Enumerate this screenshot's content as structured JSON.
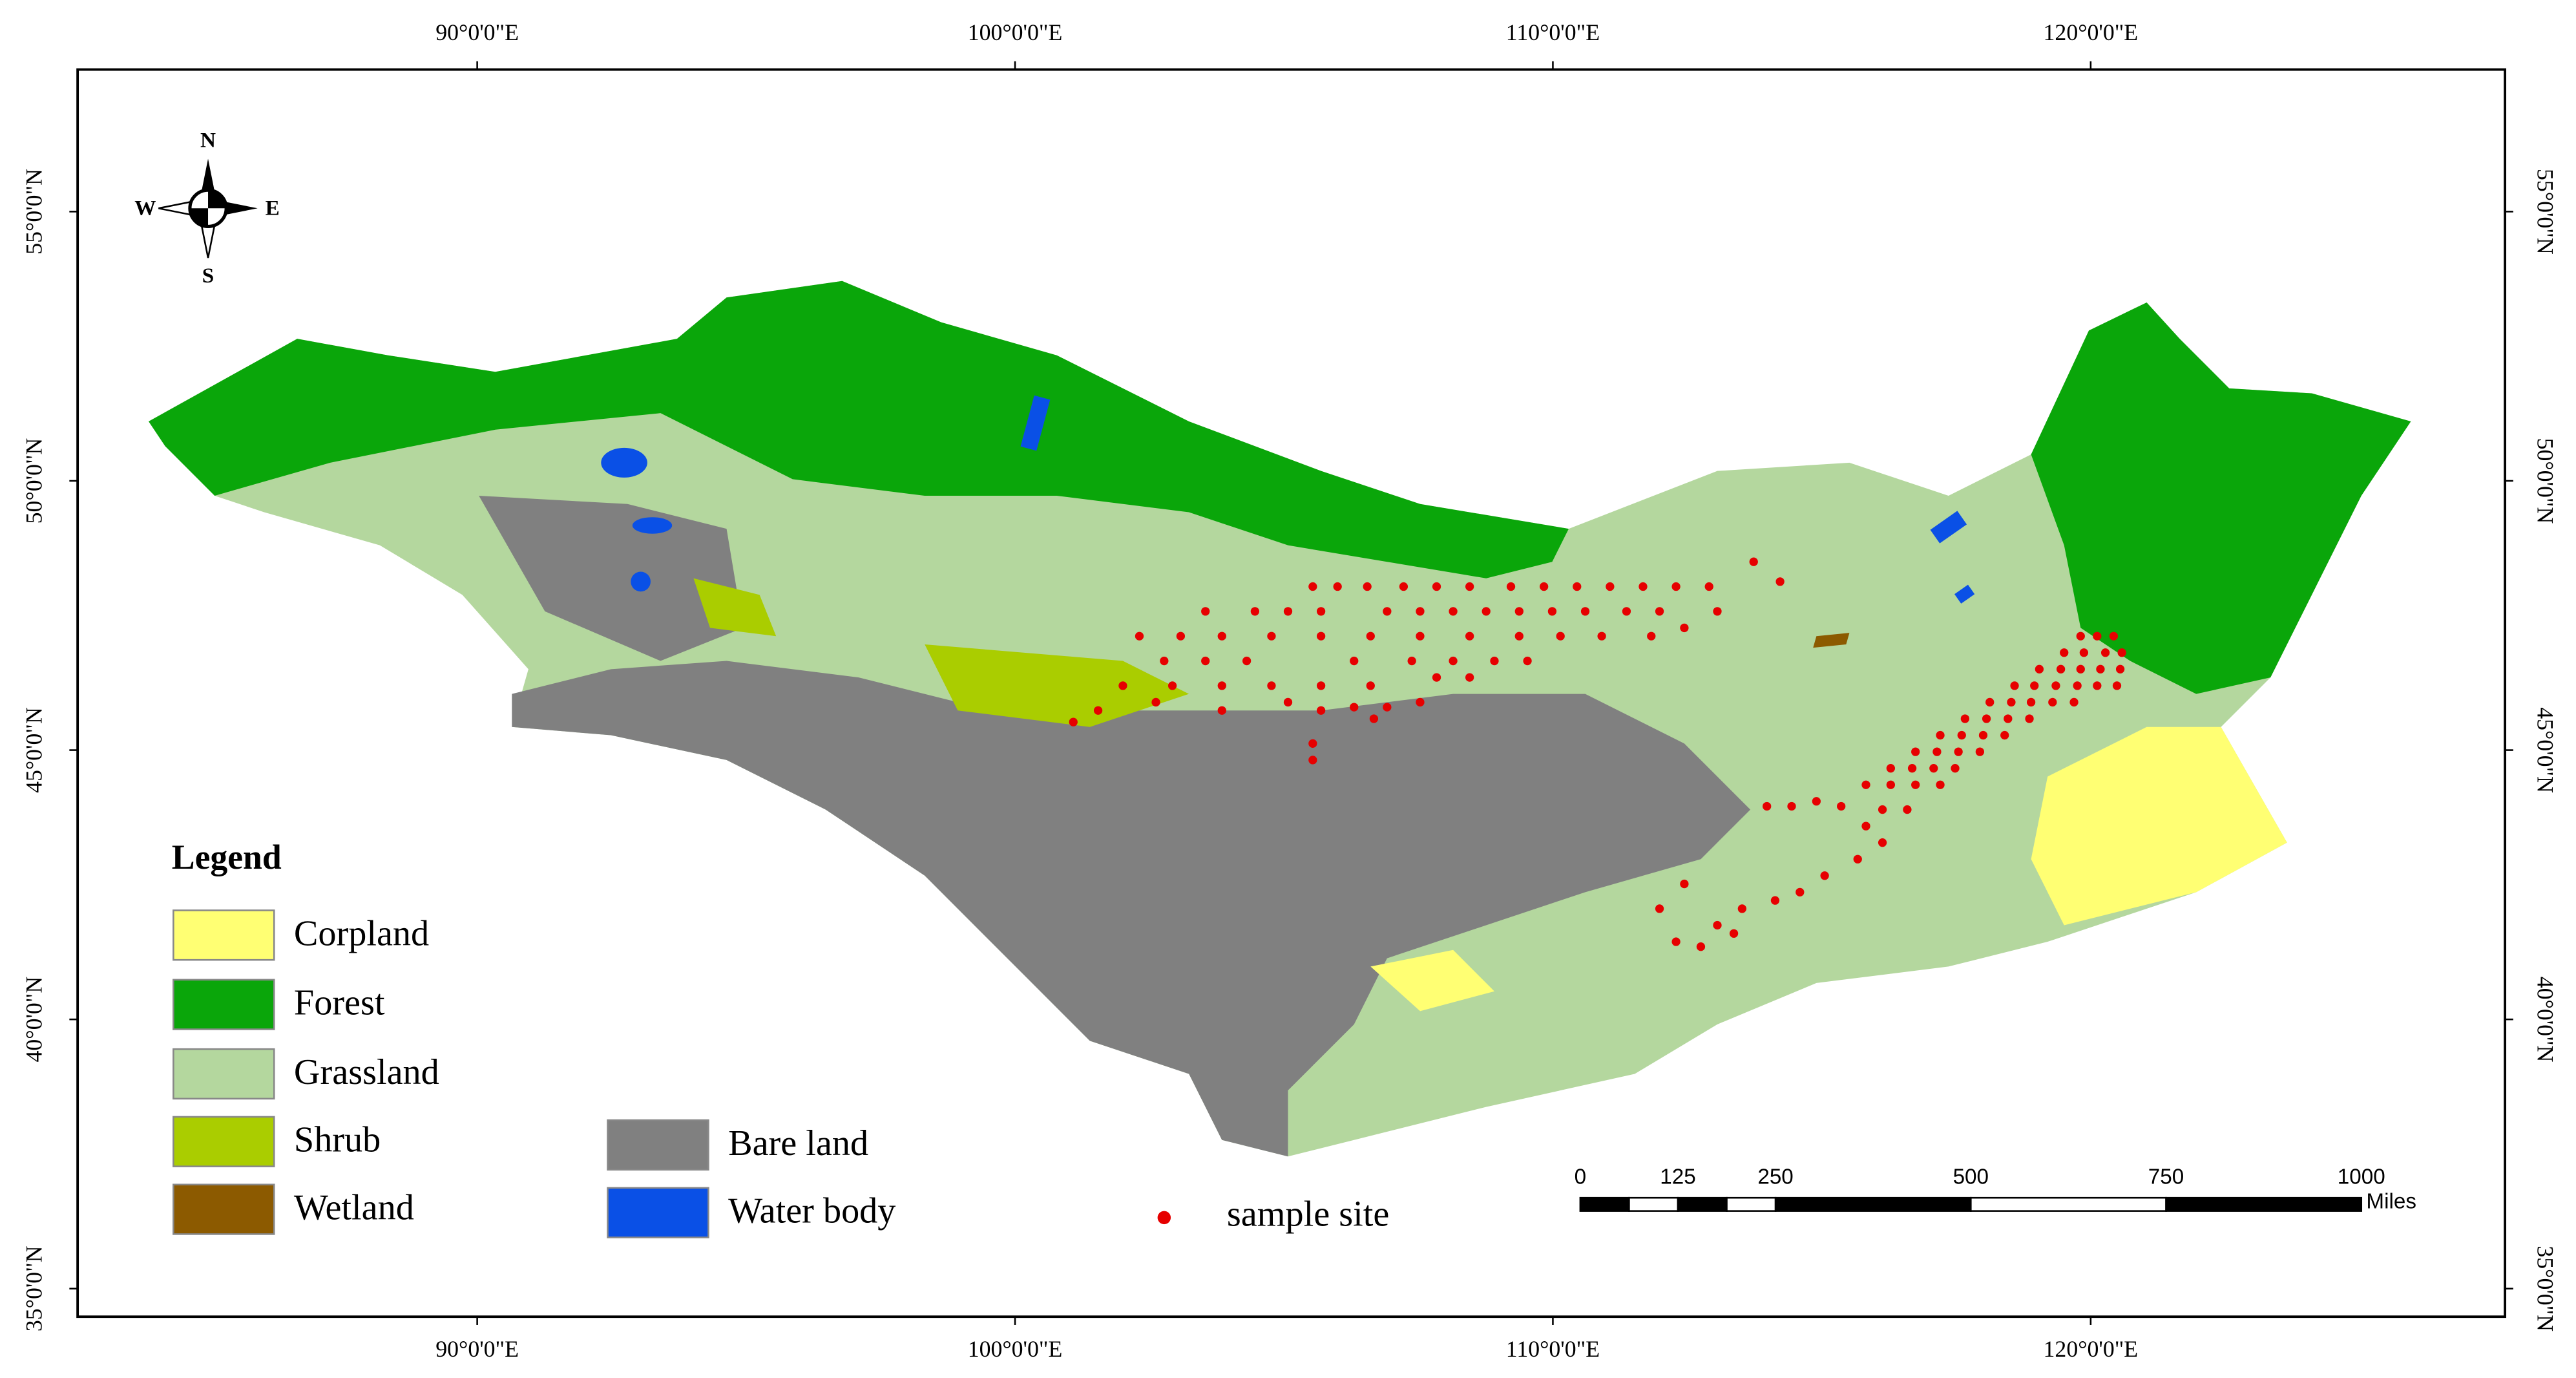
{
  "map": {
    "graticule": {
      "longitude_labels": [
        "90°0'0\"E",
        "100°0'0\"E",
        "110°0'0\"E",
        "120°0'0\"E"
      ],
      "latitude_labels": [
        "55°0'0\"N",
        "50°0'0\"N",
        "45°0'0\"N",
        "40°0'0\"N",
        "35°0'0\"N"
      ]
    },
    "compass": {
      "north": "N",
      "south": "S",
      "east": "E",
      "west": "W"
    },
    "legend": {
      "title": "Legend",
      "items": [
        {
          "label": "Corpland",
          "color": "#ffff73"
        },
        {
          "label": "Forest",
          "color": "#0aa60a"
        },
        {
          "label": "Grassland",
          "color": "#b4d79e"
        },
        {
          "label": "Shrub",
          "color": "#aacd00"
        },
        {
          "label": "Wetland",
          "color": "#8c5a00"
        },
        {
          "label": "Bare land",
          "color": "#808080"
        },
        {
          "label": "Water body",
          "color": "#0a50e6"
        }
      ],
      "sample_site": {
        "label": "sample site",
        "color": "#e60000"
      }
    },
    "scale_bar": {
      "labels": [
        0,
        125,
        250,
        500,
        750,
        1000
      ],
      "unit": "Miles"
    }
  }
}
